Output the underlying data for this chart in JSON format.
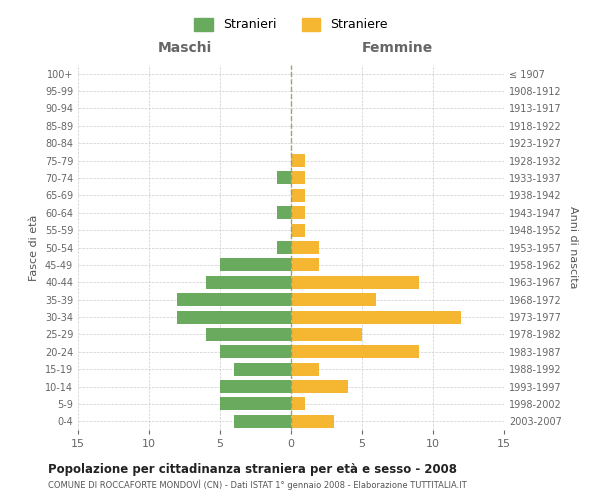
{
  "age_groups": [
    "100+",
    "95-99",
    "90-94",
    "85-89",
    "80-84",
    "75-79",
    "70-74",
    "65-69",
    "60-64",
    "55-59",
    "50-54",
    "45-49",
    "40-44",
    "35-39",
    "30-34",
    "25-29",
    "20-24",
    "15-19",
    "10-14",
    "5-9",
    "0-4"
  ],
  "birth_years": [
    "≤ 1907",
    "1908-1912",
    "1913-1917",
    "1918-1922",
    "1923-1927",
    "1928-1932",
    "1933-1937",
    "1938-1942",
    "1943-1947",
    "1948-1952",
    "1953-1957",
    "1958-1962",
    "1963-1967",
    "1968-1972",
    "1973-1977",
    "1978-1982",
    "1983-1987",
    "1988-1992",
    "1993-1997",
    "1998-2002",
    "2003-2007"
  ],
  "maschi": [
    0,
    0,
    0,
    0,
    0,
    0,
    1,
    0,
    1,
    0,
    1,
    5,
    6,
    8,
    8,
    6,
    5,
    4,
    5,
    5,
    4
  ],
  "femmine": [
    0,
    0,
    0,
    0,
    0,
    1,
    1,
    1,
    1,
    1,
    2,
    2,
    9,
    6,
    12,
    5,
    9,
    2,
    4,
    1,
    3
  ],
  "color_maschi": "#6aaa5e",
  "color_femmine": "#f5b731",
  "title": "Popolazione per cittadinanza straniera per età e sesso - 2008",
  "subtitle": "COMUNE DI ROCCAFORTE MONDOVÌ (CN) - Dati ISTAT 1° gennaio 2008 - Elaborazione TUTTITALIA.IT",
  "xlabel_left": "Maschi",
  "xlabel_right": "Femmine",
  "ylabel_left": "Fasce di età",
  "ylabel_right": "Anni di nascita",
  "legend_maschi": "Stranieri",
  "legend_femmine": "Straniere",
  "xlim": 15,
  "background_color": "#ffffff",
  "grid_color": "#cccccc"
}
